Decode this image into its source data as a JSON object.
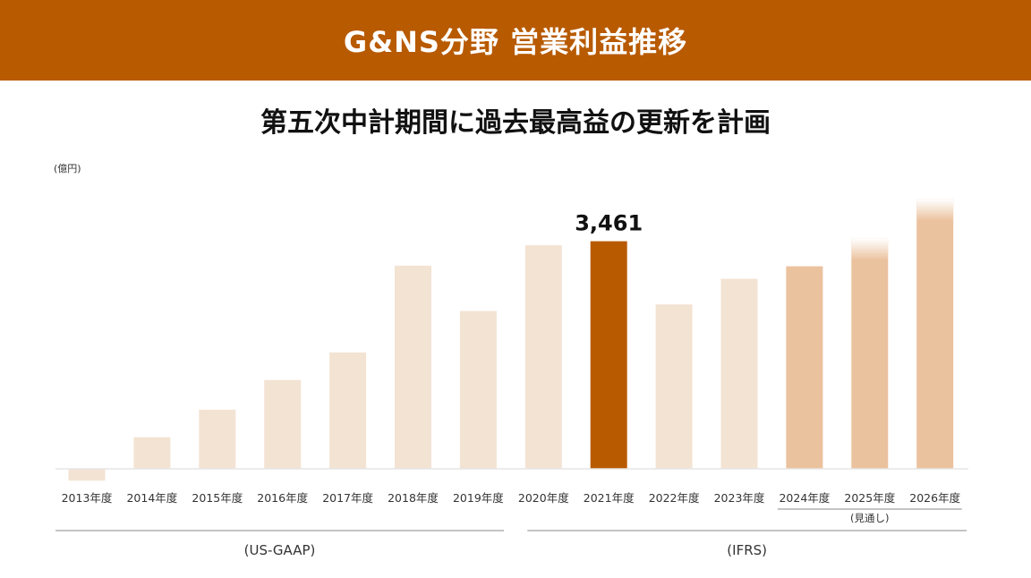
{
  "header": {
    "title": "G&NS分野 営業利益推移"
  },
  "subtitle": "第五次中計期間に過去最高益の更新を計画",
  "chart_data": {
    "type": "bar",
    "unit_label": "(億円)",
    "categories": [
      "2013年度",
      "2014年度",
      "2015年度",
      "2016年度",
      "2017年度",
      "2018年度",
      "2019年度",
      "2020年度",
      "2021年度",
      "2022年度",
      "2023年度",
      "2024年度",
      "2025年度",
      "2026年度"
    ],
    "values": [
      -180,
      480,
      900,
      1350,
      1770,
      3090,
      2400,
      3400,
      3461,
      2500,
      2890,
      3080,
      3500,
      4100
    ],
    "highlight": {
      "category": "2021年度",
      "label": "3,461"
    },
    "ylim": [
      -200,
      4150
    ],
    "grid": false,
    "forecast_note": {
      "label": "(見通し)",
      "categories": [
        "2024年度",
        "2025年度",
        "2026年度"
      ]
    },
    "accounting_groups": [
      {
        "label": "(US-GAAP)",
        "categories": [
          "2013年度",
          "2014年度",
          "2015年度",
          "2016年度",
          "2017年度",
          "2018年度",
          "2019年度"
        ]
      },
      {
        "label": "(IFRS)",
        "categories": [
          "2020年度",
          "2021年度",
          "2022年度",
          "2023年度",
          "2024年度",
          "2025年度",
          "2026年度"
        ]
      }
    ],
    "colors": {
      "actual": "#f3e3d3",
      "highlight": "#b85a00",
      "plan": "#ebc29e",
      "baseline": "#e6e6e6",
      "group_line": "#888888"
    }
  }
}
